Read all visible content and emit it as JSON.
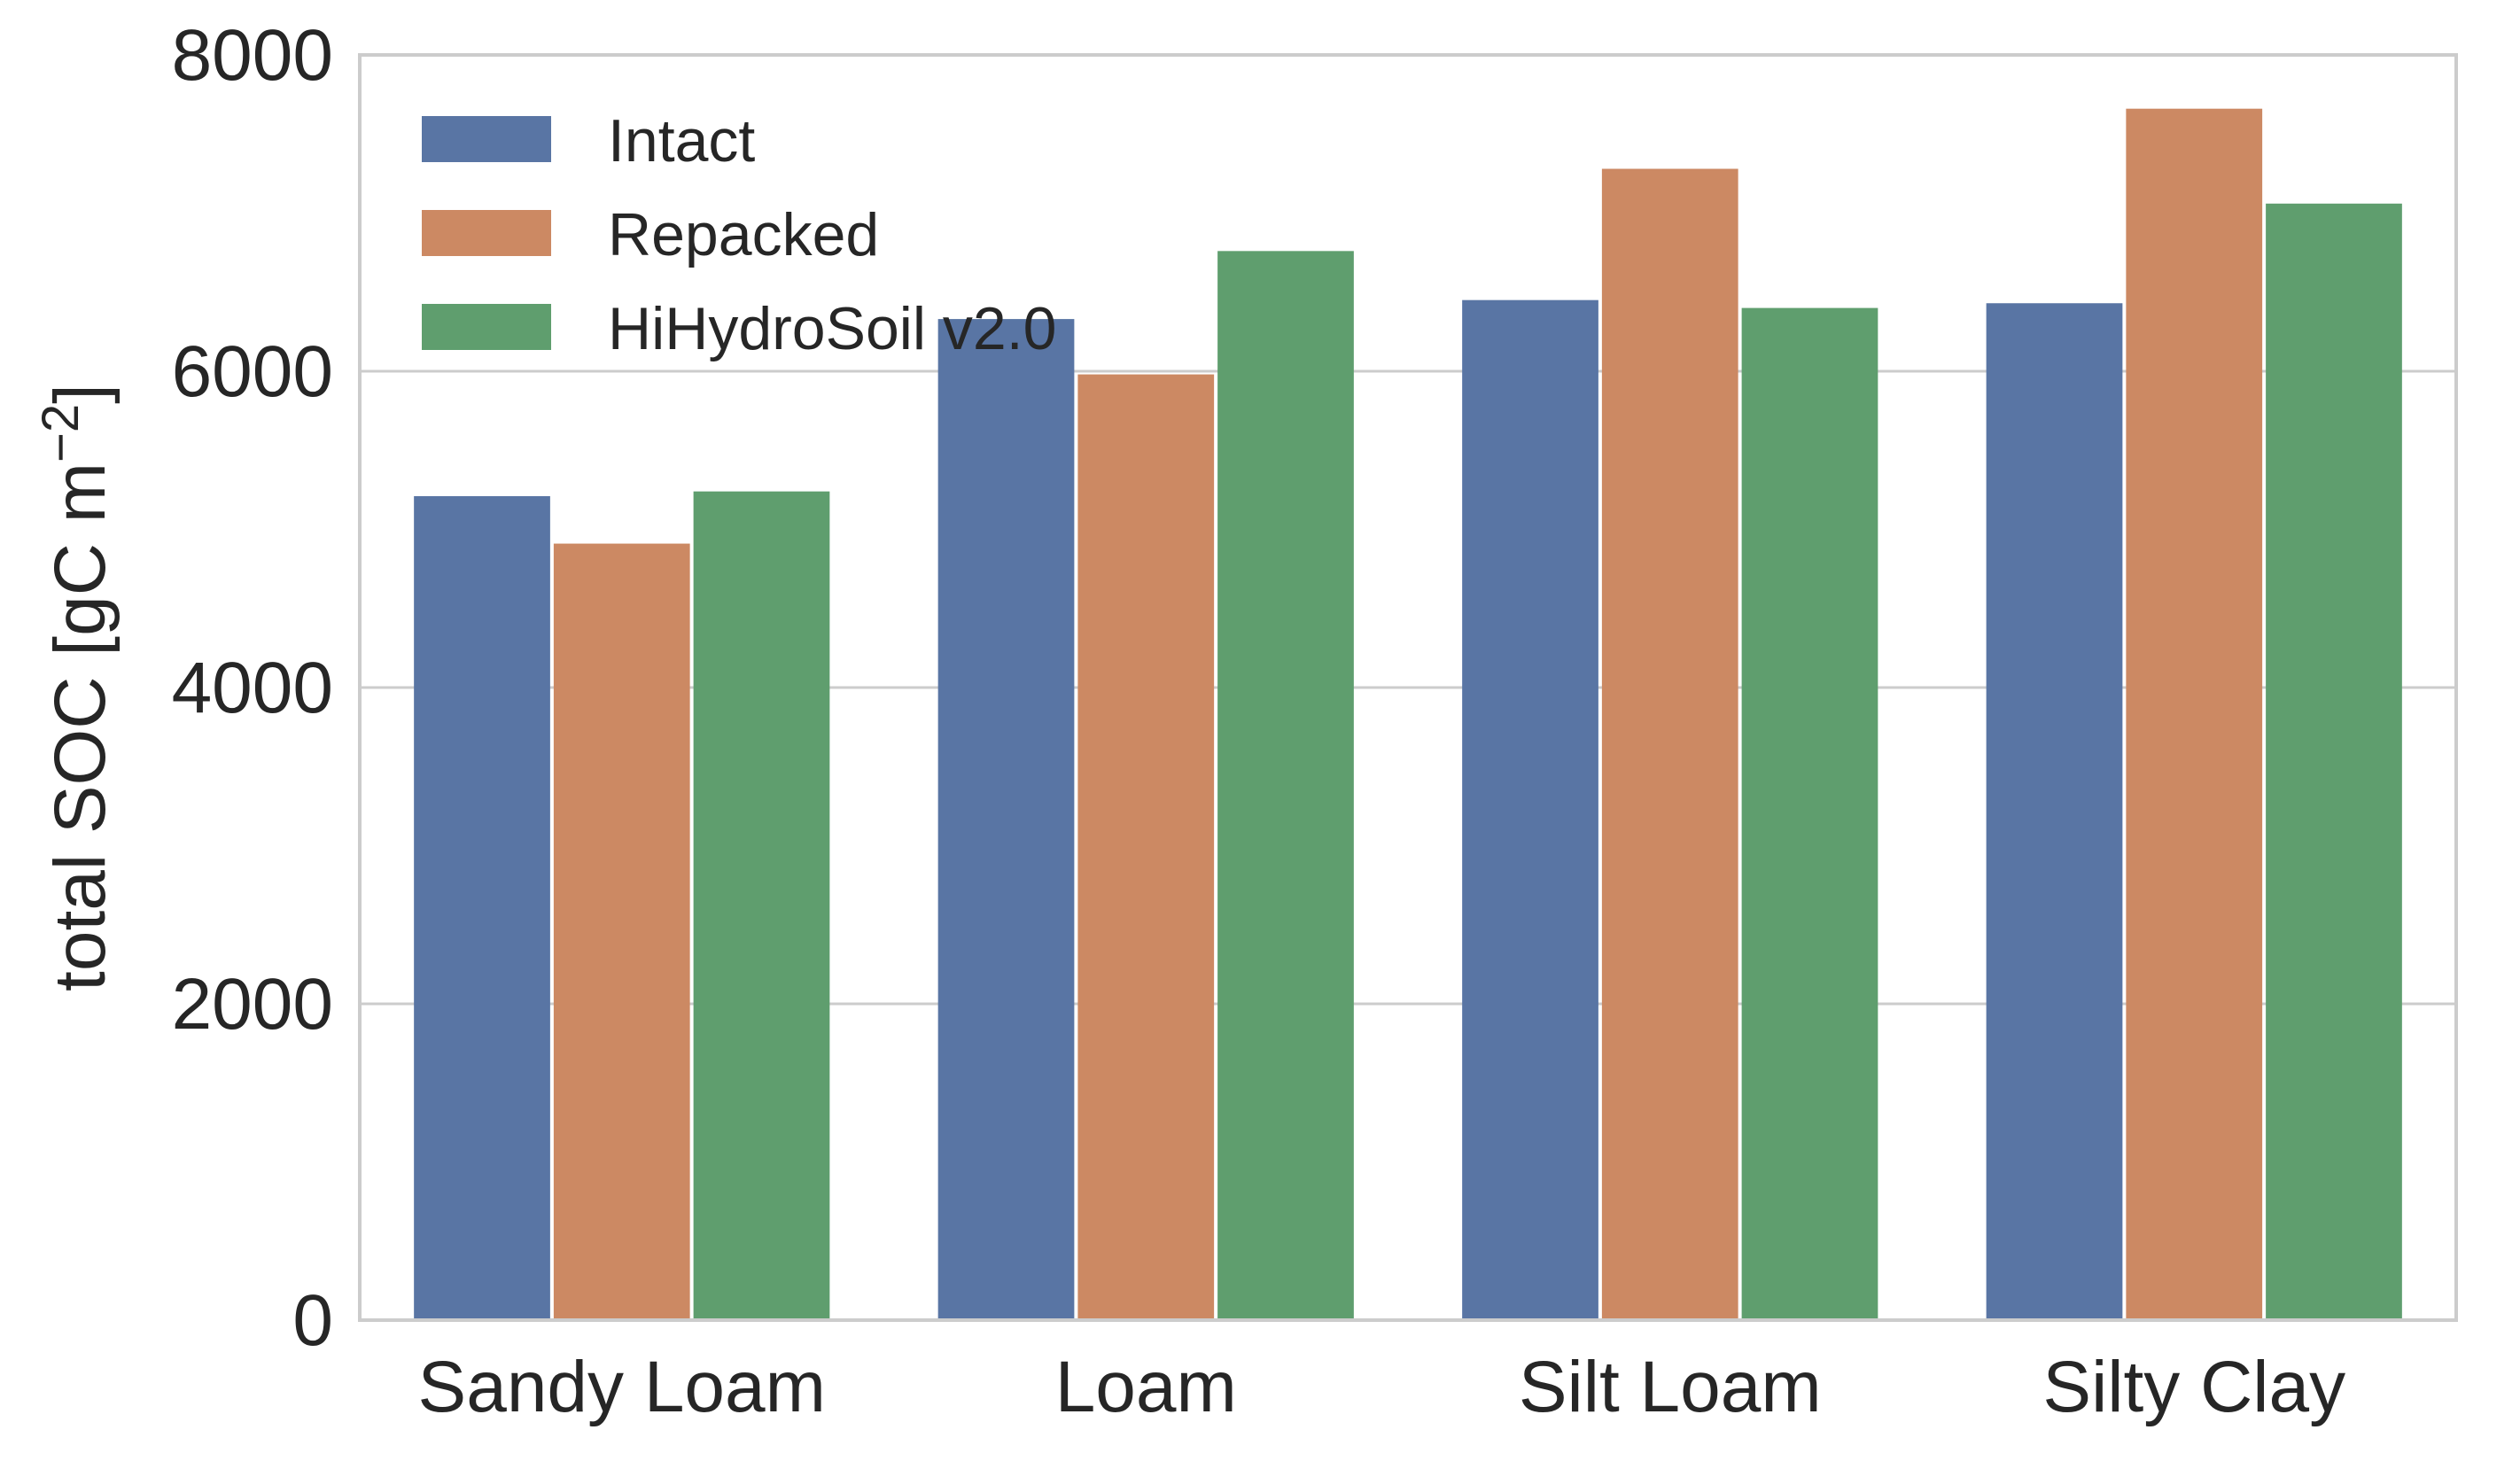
{
  "chart_data": {
    "type": "bar",
    "title": "",
    "xlabel": "",
    "ylabel": "total SOC [gC m",
    "ylabel_unit_exp": "−2",
    "ylabel_close": "]",
    "categories": [
      "Sandy Loam",
      "Loam",
      "Silt Loam",
      "Silty Clay"
    ],
    "series": [
      {
        "name": "Intact",
        "color": "#5975a4",
        "values": [
          5210,
          6330,
          6450,
          6430
        ]
      },
      {
        "name": "Repacked",
        "color": "#cc8963",
        "values": [
          4910,
          5980,
          7280,
          7660
        ]
      },
      {
        "name": "HiHydroSoil v2.0",
        "color": "#5f9e6e",
        "values": [
          5240,
          6760,
          6400,
          7060
        ]
      }
    ],
    "ylim": [
      0,
      8000
    ],
    "yticks": [
      "0",
      "2000",
      "4000",
      "6000",
      "8000"
    ],
    "ytick_values": [
      0,
      2000,
      4000,
      6000,
      8000
    ],
    "grid": true,
    "legend_position": "top-left",
    "colors": {
      "grid": "#cccccc",
      "axes_edge": "#cccccc",
      "text": "#262626"
    }
  }
}
